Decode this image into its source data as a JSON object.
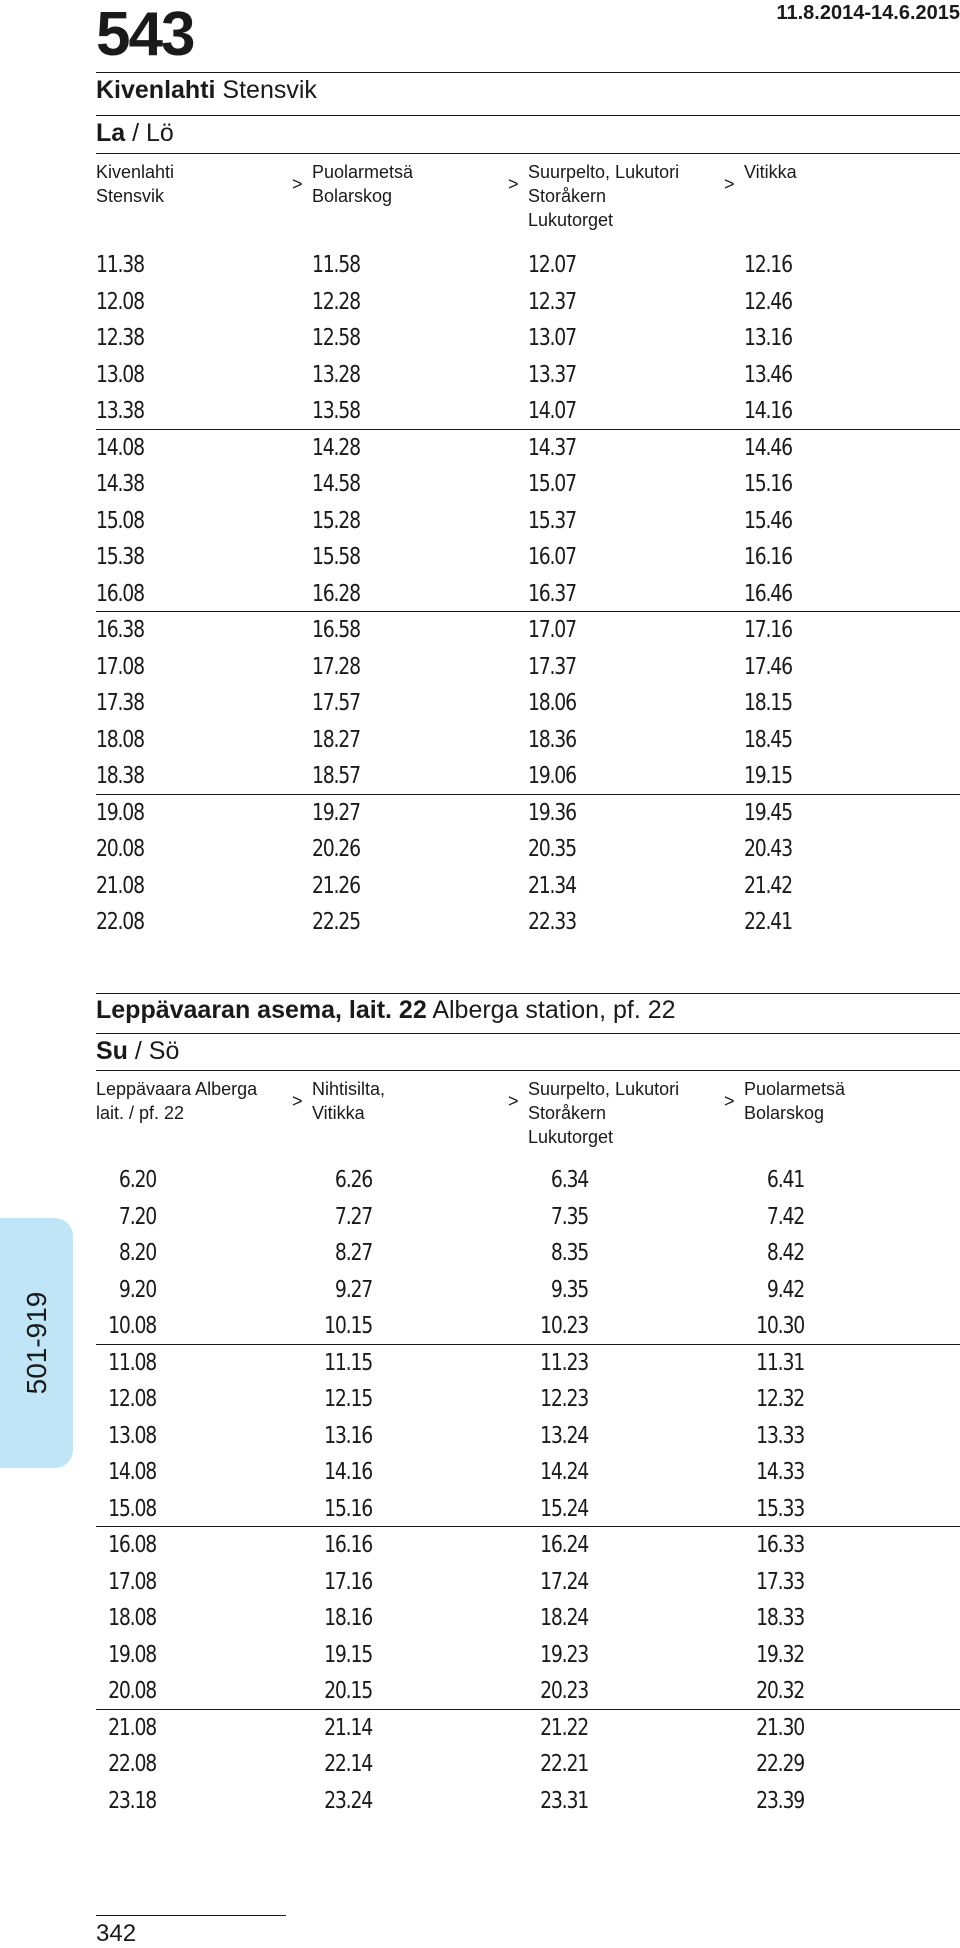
{
  "header": {
    "route_number": "543",
    "validity": "11.8.2014-14.6.2015",
    "page_number": "342",
    "side_tab": "501-919"
  },
  "sections": [
    {
      "stop_bold": "Kivenlahti",
      "stop_rest": " Stensvik",
      "day_bold": "La",
      "day_rest": " / Lö",
      "columns": [
        "Kivenlahti\nStensvik",
        "Puolarmetsä\nBolarskog",
        "Suurpelto, Lukutori\nStoråkern\nLukutorget",
        "Vitikka"
      ],
      "arrow": ">",
      "rows": [
        [
          "11.38",
          "11.58",
          "12.07",
          "12.16"
        ],
        [
          "12.08",
          "12.28",
          "12.37",
          "12.46"
        ],
        [
          "12.38",
          "12.58",
          "13.07",
          "13.16"
        ],
        [
          "13.08",
          "13.28",
          "13.37",
          "13.46"
        ],
        [
          "13.38",
          "13.58",
          "14.07",
          "14.16"
        ],
        [
          "14.08",
          "14.28",
          "14.37",
          "14.46"
        ],
        [
          "14.38",
          "14.58",
          "15.07",
          "15.16"
        ],
        [
          "15.08",
          "15.28",
          "15.37",
          "15.46"
        ],
        [
          "15.38",
          "15.58",
          "16.07",
          "16.16"
        ],
        [
          "16.08",
          "16.28",
          "16.37",
          "16.46"
        ],
        [
          "16.38",
          "16.58",
          "17.07",
          "17.16"
        ],
        [
          "17.08",
          "17.28",
          "17.37",
          "17.46"
        ],
        [
          "17.38",
          "17.57",
          "18.06",
          "18.15"
        ],
        [
          "18.08",
          "18.27",
          "18.36",
          "18.45"
        ],
        [
          "18.38",
          "18.57",
          "19.06",
          "19.15"
        ],
        [
          "19.08",
          "19.27",
          "19.36",
          "19.45"
        ],
        [
          "20.08",
          "20.26",
          "20.35",
          "20.43"
        ],
        [
          "21.08",
          "21.26",
          "21.34",
          "21.42"
        ],
        [
          "22.08",
          "22.25",
          "22.33",
          "22.41"
        ]
      ]
    },
    {
      "stop_bold": "Leppävaaran asema, lait. 22",
      "stop_rest": " Alberga station, pf. 22",
      "day_bold": "Su",
      "day_rest": " / Sö",
      "columns": [
        "Leppävaara Alberga\nlait. / pf. 22",
        "Nihtisilta,\nVitikka",
        "Suurpelto, Lukutori\nStoråkern\nLukutorget",
        "Puolarmetsä\nBolarskog"
      ],
      "arrow": ">",
      "rows": [
        [
          "6.20",
          "6.26",
          "6.34",
          "6.41"
        ],
        [
          "7.20",
          "7.27",
          "7.35",
          "7.42"
        ],
        [
          "8.20",
          "8.27",
          "8.35",
          "8.42"
        ],
        [
          "9.20",
          "9.27",
          "9.35",
          "9.42"
        ],
        [
          "10.08",
          "10.15",
          "10.23",
          "10.30"
        ],
        [
          "11.08",
          "11.15",
          "11.23",
          "11.31"
        ],
        [
          "12.08",
          "12.15",
          "12.23",
          "12.32"
        ],
        [
          "13.08",
          "13.16",
          "13.24",
          "13.33"
        ],
        [
          "14.08",
          "14.16",
          "14.24",
          "14.33"
        ],
        [
          "15.08",
          "15.16",
          "15.24",
          "15.33"
        ],
        [
          "16.08",
          "16.16",
          "16.24",
          "16.33"
        ],
        [
          "17.08",
          "17.16",
          "17.24",
          "17.33"
        ],
        [
          "18.08",
          "18.16",
          "18.24",
          "18.33"
        ],
        [
          "19.08",
          "19.15",
          "19.23",
          "19.32"
        ],
        [
          "20.08",
          "20.15",
          "20.23",
          "20.32"
        ],
        [
          "21.08",
          "21.14",
          "21.22",
          "21.30"
        ],
        [
          "22.08",
          "22.14",
          "22.21",
          "22.29"
        ],
        [
          "23.18",
          "23.24",
          "23.31",
          "23.39"
        ]
      ]
    }
  ]
}
